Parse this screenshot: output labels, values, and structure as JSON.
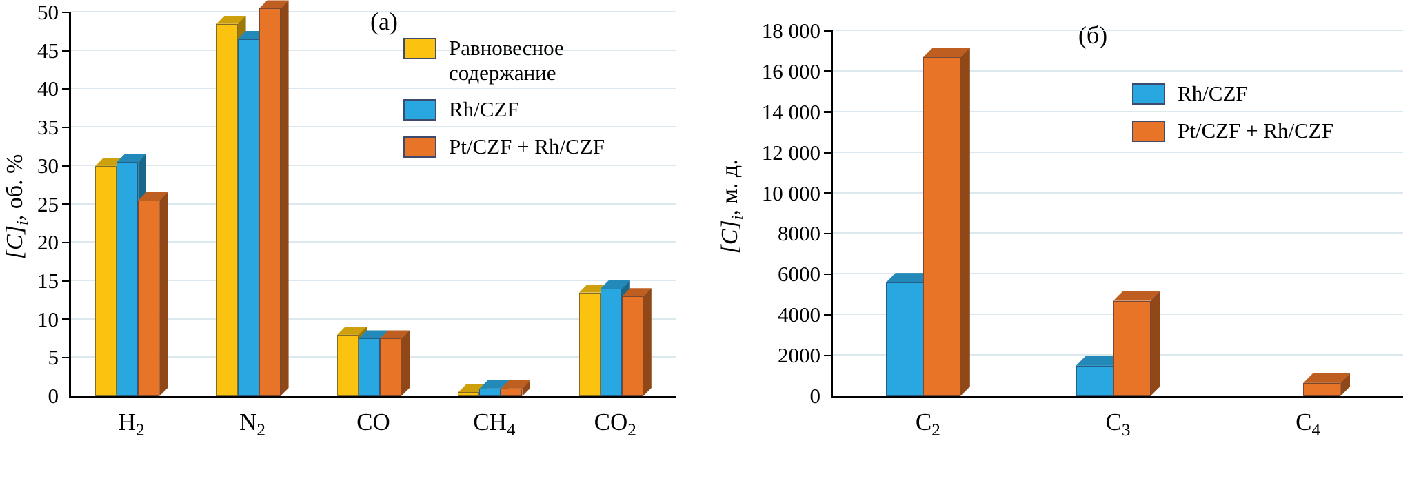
{
  "chart_data": [
    {
      "type": "bar",
      "title": "(а)",
      "ylabel": {
        "main": "[C]",
        "sub": "i",
        "rest": ", об. %"
      },
      "ylim": [
        0,
        50
      ],
      "ytick_step": 5,
      "ytick_labels": [
        "0",
        "5",
        "10",
        "15",
        "20",
        "25",
        "30",
        "35",
        "40",
        "45",
        "50"
      ],
      "grid": true,
      "legend_position": "top-right-inside",
      "categories": [
        {
          "text": "H",
          "sub": "2"
        },
        {
          "text": "N",
          "sub": "2"
        },
        {
          "text": "CO",
          "sub": ""
        },
        {
          "text": "CH",
          "sub": "4"
        },
        {
          "text": "CO",
          "sub": "2"
        }
      ],
      "series": [
        {
          "name": "Равновесное содержание",
          "name_lines": [
            "Равновесное",
            "содержание"
          ],
          "color": "#FBC30F",
          "values": [
            30,
            48.5,
            8,
            0.5,
            13.5
          ]
        },
        {
          "name": "Rh/CZF",
          "color": "#29A7E0",
          "values": [
            30.5,
            46.5,
            7.5,
            1,
            14
          ]
        },
        {
          "name": "Pt/CZF + Rh/CZF",
          "color": "#E87428",
          "values": [
            25.5,
            50.5,
            7.5,
            1,
            13
          ]
        }
      ]
    },
    {
      "type": "bar",
      "title": "(б)",
      "ylabel": {
        "main": "[C]",
        "sub": "i",
        "rest": ", м. д."
      },
      "ylim": [
        0,
        18000
      ],
      "ytick_step": 2000,
      "ytick_labels": [
        "0",
        "2000",
        "4000",
        "6000",
        "8000",
        "10 000",
        "12 000",
        "14 000",
        "16 000",
        "18 000"
      ],
      "grid": true,
      "legend_position": "top-right-inside",
      "categories": [
        {
          "text": "C",
          "sub": "2"
        },
        {
          "text": "C",
          "sub": "3"
        },
        {
          "text": "C",
          "sub": "4"
        }
      ],
      "series": [
        {
          "name": "Rh/CZF",
          "color": "#29A7E0",
          "values": [
            5600,
            1500,
            0
          ]
        },
        {
          "name": "Pt/CZF + Rh/CZF",
          "color": "#E87428",
          "values": [
            16700,
            4700,
            650
          ]
        }
      ]
    }
  ]
}
